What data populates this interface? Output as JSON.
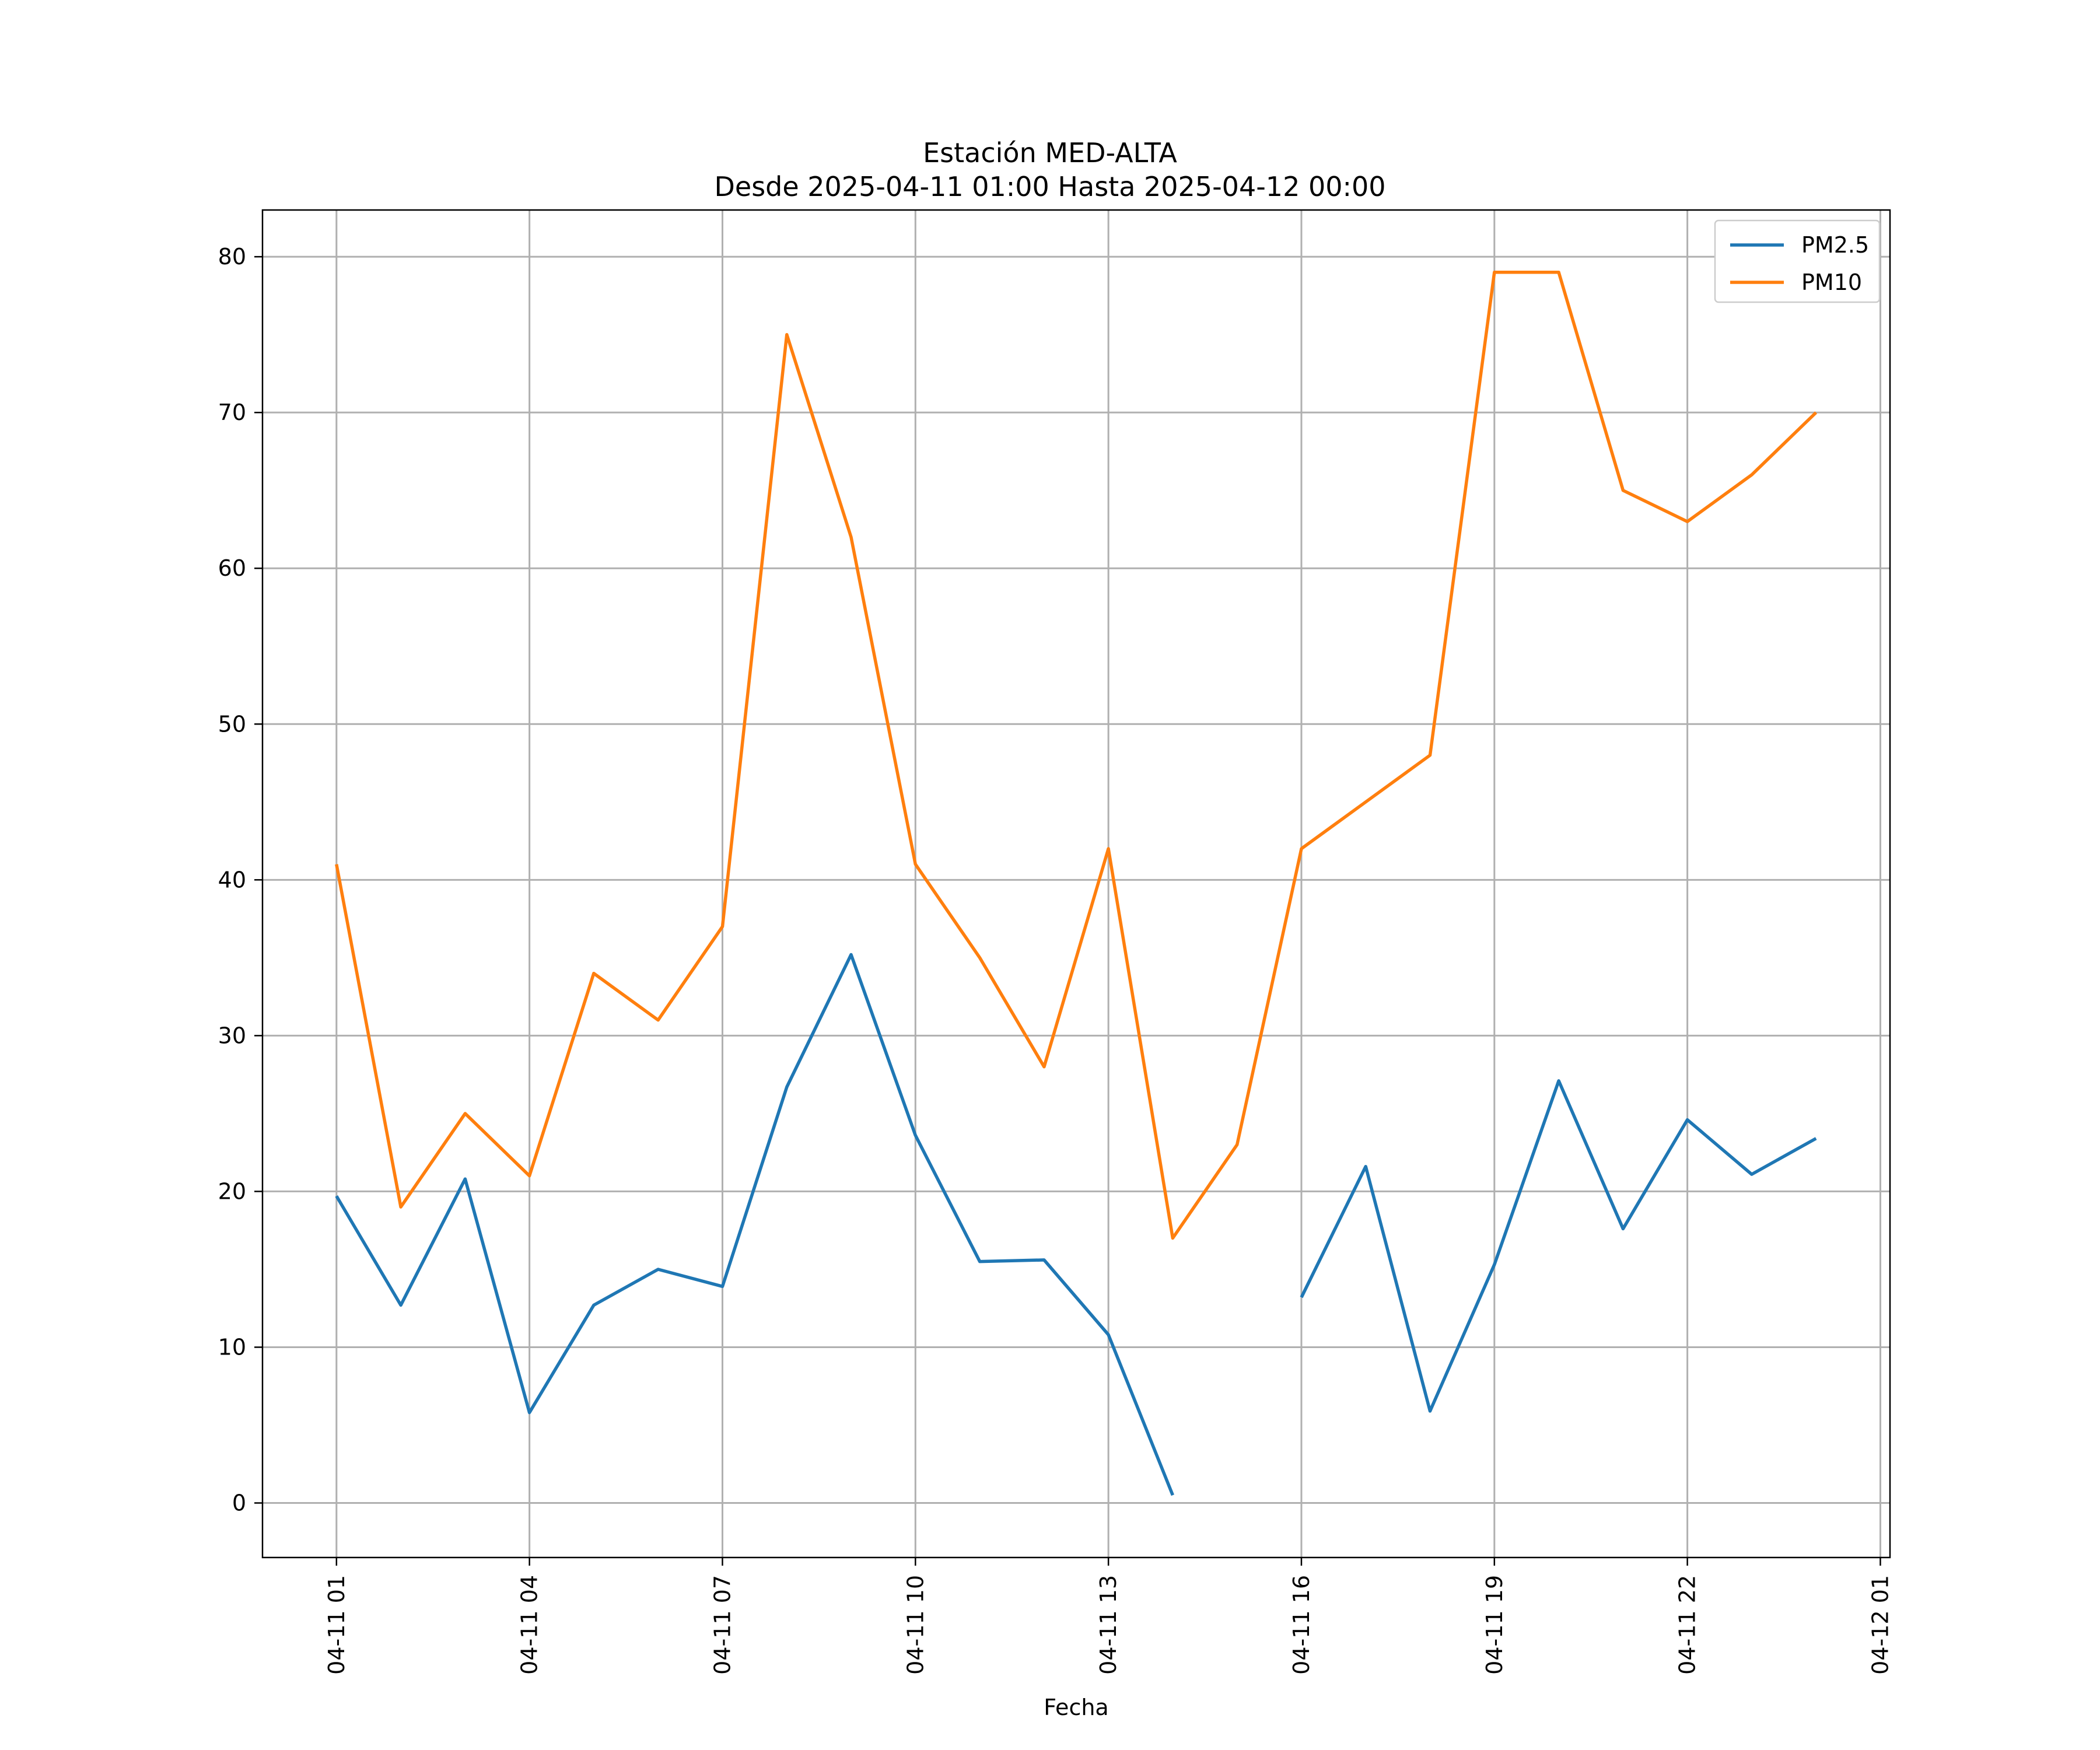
{
  "chart_data": {
    "type": "line",
    "title": "Estación MED-ALTA",
    "subtitle": "Desde 2025-04-11 01:00 Hasta 2025-04-12 00:00",
    "xlabel": "Fecha",
    "ylabel": "",
    "x": [
      "04-11 01",
      "04-11 02",
      "04-11 03",
      "04-11 04",
      "04-11 05",
      "04-11 06",
      "04-11 07",
      "04-11 08",
      "04-11 09",
      "04-11 10",
      "04-11 11",
      "04-11 12",
      "04-11 13",
      "04-11 14",
      "04-11 15",
      "04-11 16",
      "04-11 17",
      "04-11 18",
      "04-11 19",
      "04-11 20",
      "04-11 21",
      "04-11 22",
      "04-11 23",
      "04-12 00"
    ],
    "x_hours": [
      1,
      2,
      3,
      4,
      5,
      6,
      7,
      8,
      9,
      10,
      11,
      12,
      13,
      14,
      15,
      16,
      17,
      18,
      19,
      20,
      21,
      22,
      23,
      24
    ],
    "xticks": {
      "hours": [
        1,
        4,
        7,
        10,
        13,
        16,
        19,
        22,
        25
      ],
      "labels": [
        "04-11 01",
        "04-11 04",
        "04-11 07",
        "04-11 10",
        "04-11 13",
        "04-11 16",
        "04-11 19",
        "04-11 22",
        "04-12 01"
      ]
    },
    "xlim_hours": [
      -0.15,
      25.15
    ],
    "ylim": [
      -3.5,
      83
    ],
    "yticks": [
      0,
      10,
      20,
      30,
      40,
      50,
      60,
      70,
      80
    ],
    "grid": true,
    "legend": "top-right",
    "series": [
      {
        "name": "PM2.5",
        "color": "#1f77b4",
        "values": [
          19.7,
          12.7,
          20.8,
          5.8,
          12.7,
          15.0,
          13.9,
          26.7,
          35.2,
          23.6,
          15.5,
          15.6,
          10.8,
          0.5,
          null,
          13.2,
          21.6,
          5.9,
          15.3,
          27.1,
          17.6,
          24.6,
          21.1,
          23.4
        ]
      },
      {
        "name": "PM10",
        "color": "#ff7f0e",
        "values": [
          41,
          19,
          25,
          21,
          34,
          31,
          37,
          75,
          62,
          41,
          35,
          28,
          42,
          17,
          23,
          42,
          45,
          48,
          79,
          79,
          65,
          63,
          66,
          70
        ]
      }
    ]
  }
}
